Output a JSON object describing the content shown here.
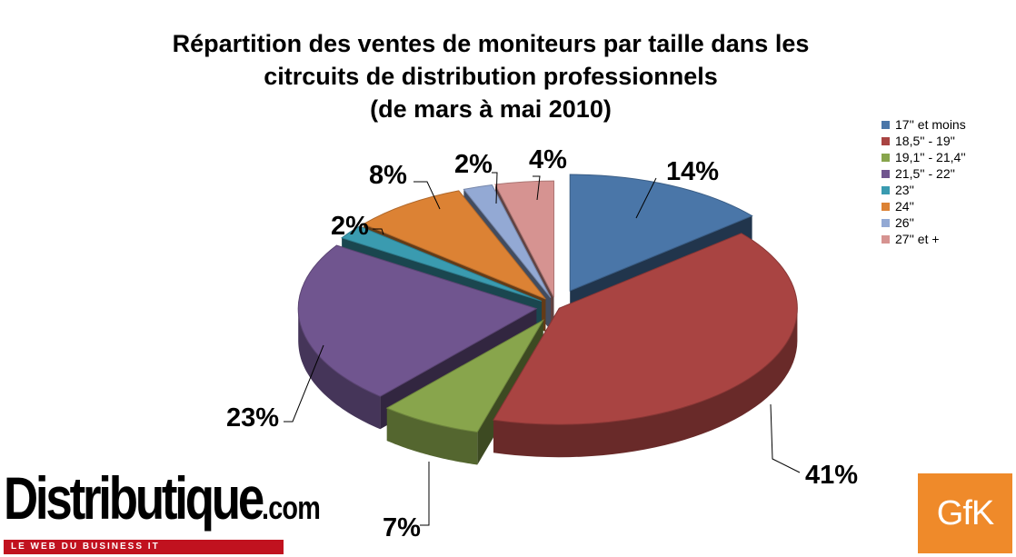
{
  "chart_data": {
    "type": "pie",
    "title_lines": [
      "Répartition des ventes de moniteurs par taille dans les",
      "citrcuits de distribution professionnels",
      "(de mars à mai 2010)"
    ],
    "categories": [
      "17'' et moins",
      "18,5'' - 19''",
      "19,1'' - 21,4''",
      "21,5'' - 22''",
      "23''",
      "24''",
      "26''",
      "27'' et +"
    ],
    "values": [
      14,
      41,
      7,
      23,
      2,
      8,
      2,
      4
    ],
    "data_labels": [
      "14%",
      "41%",
      "7%",
      "23%",
      "2%",
      "8%",
      "2%",
      "4%"
    ],
    "colors": [
      "#4a76a8",
      "#a94442",
      "#88a54c",
      "#70558f",
      "#3a9bb0",
      "#dc8234",
      "#93a9d4",
      "#d69391"
    ],
    "style": "3d exploded pie",
    "legend_position": "right"
  },
  "logos": {
    "distributique": {
      "main": "Distributique",
      "suffix": ".com",
      "tagline": "LE WEB DU BUSINESS IT"
    },
    "gfk": "GfK"
  }
}
